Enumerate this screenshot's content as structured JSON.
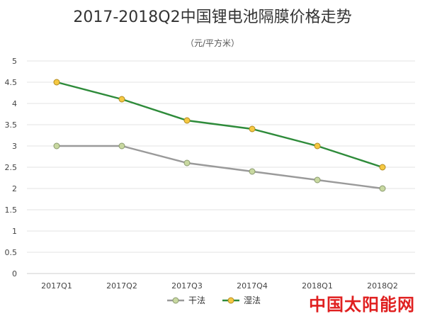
{
  "chart_data": {
    "type": "line",
    "title": "2017-2018Q2中国锂电池隔膜价格走势",
    "subtitle": "（元/平方米）",
    "categories": [
      "2017Q1",
      "2017Q2",
      "2017Q3",
      "2017Q4",
      "2018Q1",
      "2018Q2"
    ],
    "ylim": [
      0,
      5
    ],
    "yticks": [
      0,
      0.5,
      1,
      1.5,
      2,
      2.5,
      3,
      3.5,
      4,
      4.5,
      5
    ],
    "grid": true,
    "legend_position": "bottom",
    "series": [
      {
        "name": "干法",
        "values": [
          3.0,
          3.0,
          2.6,
          2.4,
          2.2,
          2.0
        ],
        "line_color": "#9a9a9a",
        "marker_color": "#c8d8a0",
        "marker_stroke": "#8a9a70"
      },
      {
        "name": "湿法",
        "values": [
          4.5,
          4.1,
          3.6,
          3.4,
          3.0,
          2.5
        ],
        "line_color": "#2e8b3a",
        "marker_color": "#f5c842",
        "marker_stroke": "#b08a20"
      }
    ]
  },
  "watermark": "中国太阳能网",
  "colors": {
    "grid": "#e3e3e3",
    "axis": "#cfcfcf",
    "watermark": "#e02020"
  }
}
